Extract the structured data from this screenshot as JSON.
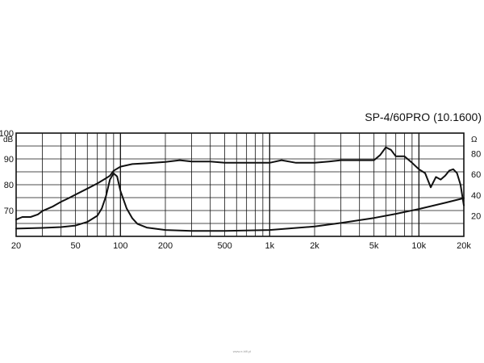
{
  "chart_data": {
    "type": "line",
    "title": "SP-4/60PRO (10.1600)",
    "x_scale": "log",
    "xlim": [
      20,
      20000
    ],
    "left_axis": {
      "unit": "dB",
      "range": [
        60,
        100
      ],
      "ticks": [
        "70",
        "80",
        "90",
        "100"
      ]
    },
    "right_axis": {
      "unit": "Ω",
      "range": [
        0,
        100
      ],
      "ticks": [
        "20",
        "40",
        "60",
        "80"
      ]
    },
    "x_ticks": [
      {
        "value": 20,
        "label": "20"
      },
      {
        "value": 50,
        "label": "50"
      },
      {
        "value": 100,
        "label": "100"
      },
      {
        "value": 200,
        "label": "200"
      },
      {
        "value": 500,
        "label": "500"
      },
      {
        "value": 1000,
        "label": "1k"
      },
      {
        "value": 2000,
        "label": "2k"
      },
      {
        "value": 5000,
        "label": "5k"
      },
      {
        "value": 10000,
        "label": "10k"
      },
      {
        "value": 20000,
        "label": "20k"
      }
    ],
    "grid": true,
    "series": [
      {
        "axis": "left",
        "x": [
          20,
          22,
          25,
          28,
          30,
          35,
          40,
          45,
          50,
          60,
          70,
          80,
          85,
          90,
          100,
          120,
          150,
          200,
          250,
          300,
          400,
          500,
          700,
          1000,
          1200,
          1500,
          2000,
          2500,
          3000,
          4000,
          5000,
          5500,
          6000,
          6500,
          7000,
          8000,
          9000,
          10000,
          11000,
          12000,
          13000,
          14000,
          15000,
          16000,
          17000,
          18000,
          19000,
          20000
        ],
        "y": [
          66.5,
          67.5,
          67.5,
          68.5,
          69.8,
          71.5,
          73.4,
          74.8,
          76.2,
          78.5,
          80.5,
          82.5,
          83.5,
          85.4,
          87.0,
          88.0,
          88.3,
          88.8,
          89.5,
          89.0,
          89.0,
          88.5,
          88.5,
          88.5,
          89.5,
          88.5,
          88.5,
          89.0,
          89.5,
          89.5,
          89.5,
          91.5,
          94.5,
          93.5,
          91.0,
          91.0,
          88.5,
          86.0,
          84.5,
          79.0,
          83.0,
          82.0,
          83.5,
          85.5,
          86.0,
          84.5,
          80.0,
          72.0
        ]
      },
      {
        "axis": "right",
        "x": [
          20,
          30,
          40,
          50,
          60,
          70,
          75,
          80,
          85,
          90,
          95,
          100,
          110,
          120,
          130,
          150,
          200,
          300,
          500,
          1000,
          2000,
          3000,
          5000,
          7000,
          10000,
          15000,
          20000
        ],
        "y": [
          7.5,
          8.2,
          9.0,
          10.5,
          14.0,
          20.0,
          27.0,
          39.0,
          55.0,
          61.0,
          58.0,
          44.0,
          27.0,
          17.5,
          12.0,
          8.5,
          6.2,
          5.3,
          5.2,
          6.2,
          9.5,
          13.0,
          17.8,
          21.8,
          26.5,
          32.5,
          37.0
        ]
      }
    ]
  },
  "watermark": "www.e-hifi.pl"
}
